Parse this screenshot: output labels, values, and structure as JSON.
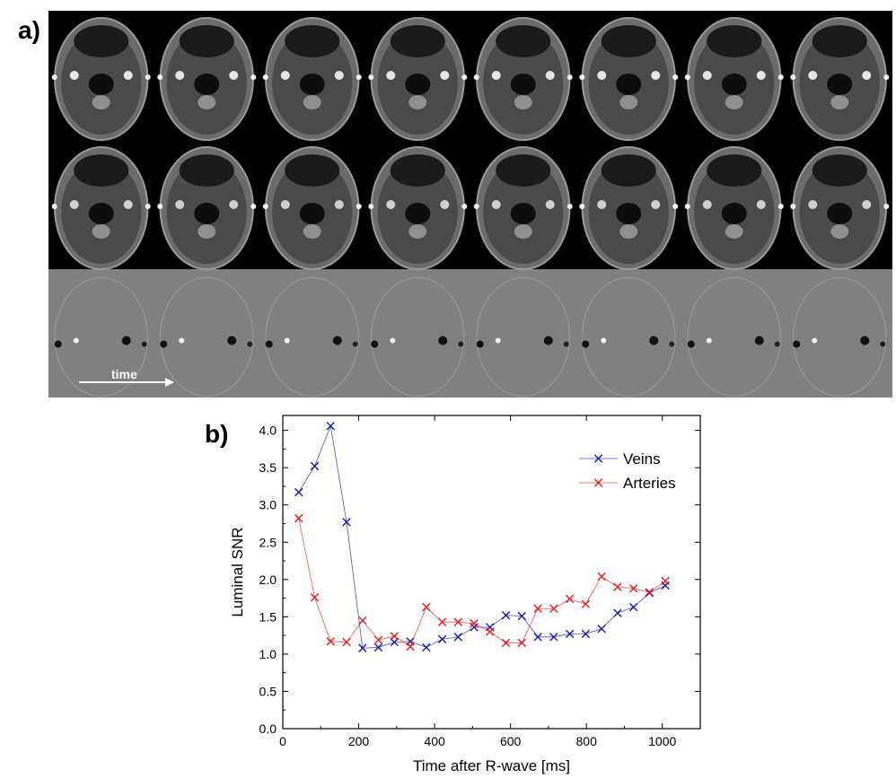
{
  "figure": {
    "panel_a_label": "a)",
    "panel_b_label": "b)",
    "time_label": "time",
    "mri_rows": 3,
    "mri_cols": 8
  },
  "colors": {
    "veins": "#1a1aa6",
    "arteries": "#e81c1c",
    "mri_background": "#000000",
    "phase_background": "#808080"
  },
  "chart_data": {
    "type": "line",
    "title": "",
    "xlabel": "Time after R-wave [ms]",
    "ylabel": "Luminal SNR",
    "xlim": [
      0,
      1100
    ],
    "ylim": [
      0.0,
      4.2
    ],
    "xticks": [
      0,
      200,
      400,
      600,
      800,
      1000
    ],
    "yticks": [
      0.0,
      0.5,
      1.0,
      1.5,
      2.0,
      2.5,
      3.0,
      3.5,
      4.0
    ],
    "ytick_labels": [
      "0.0",
      "0.5",
      "1.0",
      "1.5",
      "2.0",
      "2.5",
      "3.0",
      "3.5",
      "4.0"
    ],
    "legend_position": "top-right",
    "marker": "x",
    "series": [
      {
        "name": "Veins",
        "color": "#1a1aa6",
        "x": [
          42,
          84,
          126,
          168,
          210,
          252,
          294,
          336,
          378,
          420,
          462,
          504,
          546,
          588,
          630,
          672,
          714,
          756,
          798,
          840,
          882,
          924,
          966,
          1008
        ],
        "y": [
          3.17,
          3.52,
          4.06,
          2.77,
          1.08,
          1.09,
          1.16,
          1.17,
          1.09,
          1.2,
          1.23,
          1.36,
          1.36,
          1.52,
          1.51,
          1.23,
          1.23,
          1.27,
          1.27,
          1.34,
          1.55,
          1.63,
          1.82,
          1.92
        ]
      },
      {
        "name": "Arteries",
        "color": "#e81c1c",
        "x": [
          42,
          84,
          126,
          168,
          210,
          252,
          294,
          336,
          378,
          420,
          462,
          504,
          546,
          588,
          630,
          672,
          714,
          756,
          798,
          840,
          882,
          924,
          966,
          1008
        ],
        "y": [
          2.82,
          1.76,
          1.17,
          1.16,
          1.45,
          1.19,
          1.24,
          1.1,
          1.63,
          1.43,
          1.43,
          1.41,
          1.3,
          1.15,
          1.15,
          1.61,
          1.61,
          1.74,
          1.67,
          2.04,
          1.9,
          1.88,
          1.83,
          1.98
        ]
      }
    ]
  }
}
